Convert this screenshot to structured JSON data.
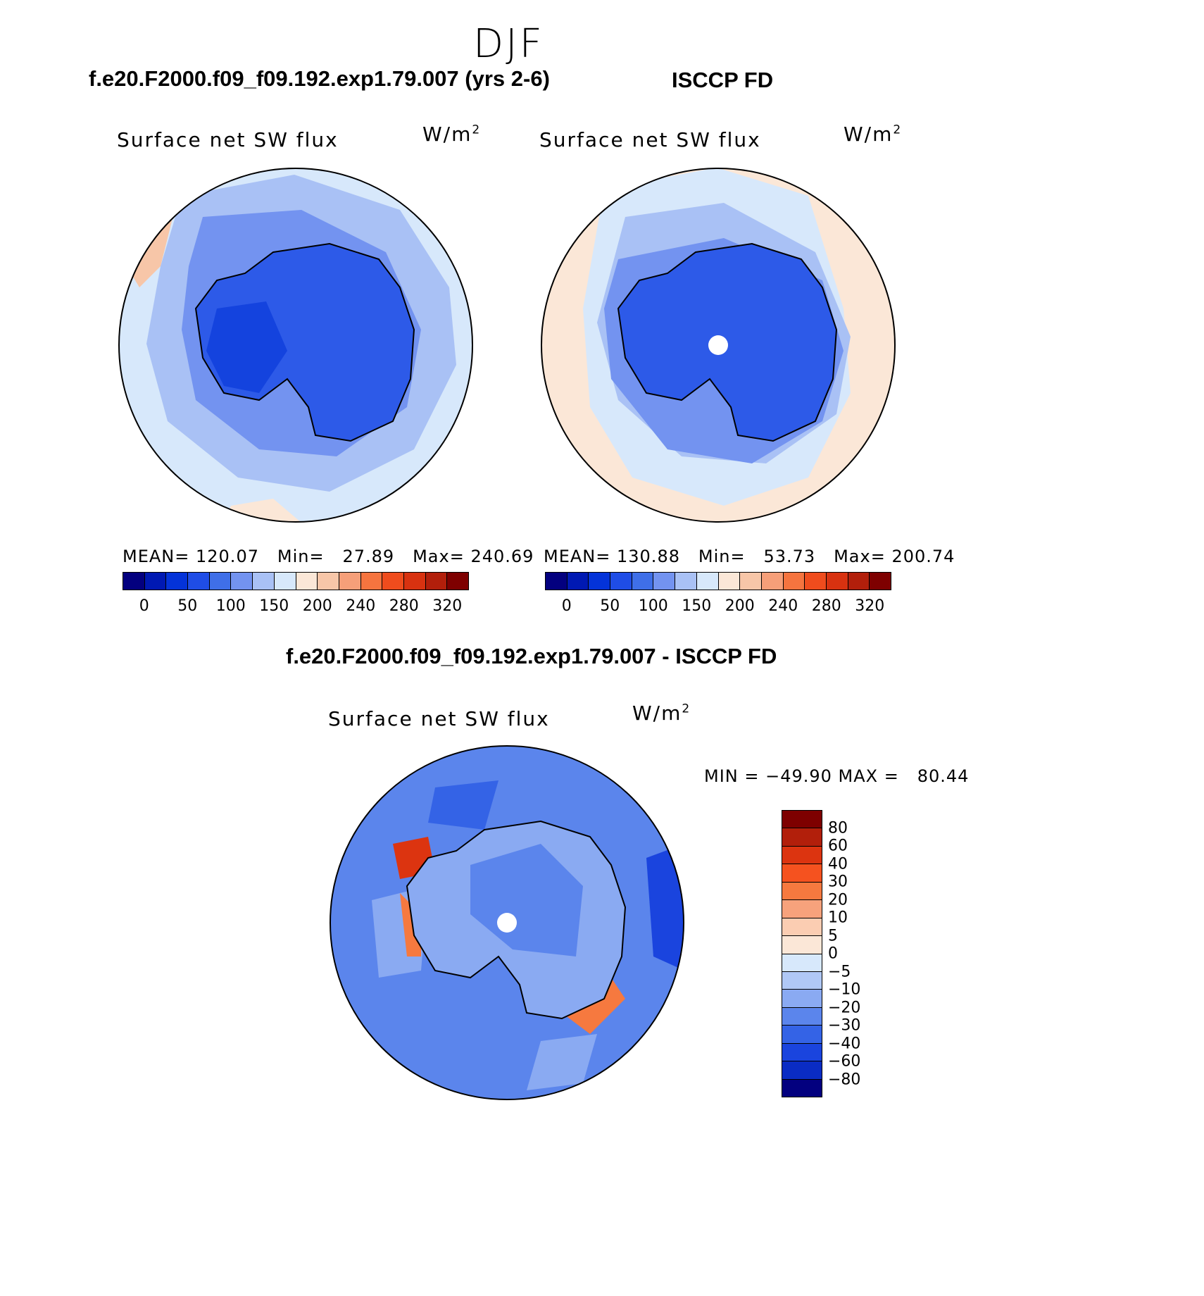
{
  "season": "DJF",
  "panels": {
    "model": {
      "title": "f.e20.F2000.f09_f09.192.exp1.79.007 (yrs 2-6)",
      "variable": "Surface net SW flux",
      "units": "W/m",
      "units_exp": "2",
      "mean_label": "MEAN=",
      "mean": "120.07",
      "min_label": "Min=",
      "min": "27.89",
      "max_label": "Max=",
      "max": "240.69"
    },
    "obs": {
      "title": "ISCCP FD",
      "variable": "Surface net SW flux",
      "units": "W/m",
      "units_exp": "2",
      "mean_label": "MEAN=",
      "mean": "130.88",
      "min_label": "Min=",
      "min": "53.73",
      "max_label": "Max=",
      "max": "200.74"
    },
    "diff": {
      "title": "f.e20.F2000.f09_f09.192.exp1.79.007 - ISCCP FD",
      "variable": "Surface net SW flux",
      "units": "W/m",
      "units_exp": "2",
      "minmax": "MIN = −49.90 MAX =   80.44"
    }
  },
  "colorbar_abs": {
    "colors": [
      "#03007f",
      "#0019b3",
      "#0433d9",
      "#1f4de6",
      "#3f6fe8",
      "#7393f0",
      "#a9c1f5",
      "#d7e8fb",
      "#fbe7d7",
      "#f7c6a8",
      "#f69f79",
      "#f5743f",
      "#ef4c1d",
      "#d83210",
      "#b21f0b",
      "#7e0000"
    ],
    "tick_labels": [
      "0",
      "50",
      "100",
      "150",
      "200",
      "240",
      "280",
      "320"
    ]
  },
  "colorbar_diff": {
    "colors": [
      "#7e0000",
      "#b21f0b",
      "#dc3410",
      "#f5521f",
      "#f6793f",
      "#f7a27c",
      "#fbcdb2",
      "#fbe7d7",
      "#d7e8fb",
      "#b0c8f6",
      "#8aaaf2",
      "#5b85ec",
      "#3463e6",
      "#1a44de",
      "#0a2cc4",
      "#03007f"
    ],
    "tick_labels": [
      "80",
      "60",
      "40",
      "30",
      "20",
      "10",
      "5",
      "0",
      "−5",
      "−10",
      "−20",
      "−30",
      "−40",
      "−60",
      "−80"
    ]
  },
  "map_colors": {
    "ocean_light": "#d7e8fb",
    "ocean_mid": "#a9c1f5",
    "ocean_mid2": "#7393f0",
    "land_blue": "#2d5ae8",
    "land_deep": "#1443de",
    "warm": "#fbe7d7",
    "warm2": "#f7c6a8",
    "diff_base": "#5b85ec",
    "diff_deep": "#1a44de",
    "diff_pos": "#f6793f",
    "diff_pos2": "#dc3410"
  }
}
